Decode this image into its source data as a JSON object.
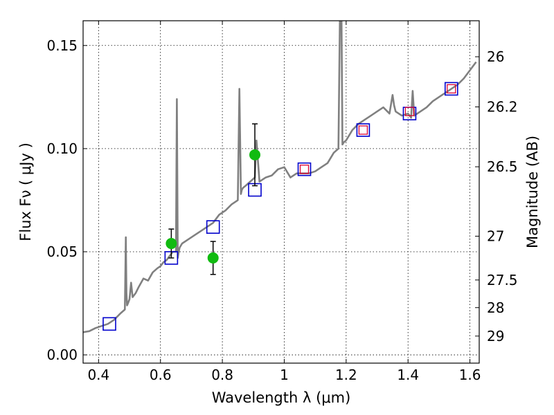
{
  "chart_data": {
    "type": "line",
    "xlabel": "Wavelength  λ (μm)",
    "ylabel": "Flux  Fν  ( μJy )",
    "y2label": "Magnitude (AB)",
    "xlim": [
      0.35,
      1.63
    ],
    "ylim": [
      -0.004,
      0.162
    ],
    "grid": true,
    "x_ticks": [
      0.4,
      0.6,
      0.8,
      1.0,
      1.2,
      1.4,
      1.6
    ],
    "x_tick_labels": [
      "0.4",
      "0.6",
      "0.8",
      "1",
      "1.2",
      "1.4",
      "1.6"
    ],
    "y_ticks": [
      0.0,
      0.05,
      0.1,
      0.15
    ],
    "y_tick_labels": [
      "0.00",
      "0.05",
      "0.10",
      "0.15"
    ],
    "mag_ticks": [
      26,
      26.2,
      26.5,
      27,
      27.5,
      28,
      29
    ],
    "mag_tick_labels": [
      "26",
      "26.2",
      "26.5",
      "27",
      "27.5",
      "28",
      "29"
    ],
    "colors": {
      "spectrum": "#808080",
      "model_box": "#0000cc",
      "filter_box": "#dd0033",
      "observed": "#11bb11",
      "errorbar": "#000000"
    },
    "series": [
      {
        "kind": "spectrum",
        "x": [
          0.35,
          0.37,
          0.39,
          0.41,
          0.43,
          0.45,
          0.47,
          0.485,
          0.488,
          0.49,
          0.492,
          0.495,
          0.5,
          0.505,
          0.51,
          0.52,
          0.53,
          0.545,
          0.56,
          0.575,
          0.59,
          0.6,
          0.61,
          0.62,
          0.63,
          0.64,
          0.65,
          0.653,
          0.656,
          0.659,
          0.662,
          0.67,
          0.69,
          0.71,
          0.73,
          0.75,
          0.77,
          0.79,
          0.81,
          0.83,
          0.85,
          0.855,
          0.86,
          0.863,
          0.867,
          0.875,
          0.89,
          0.905,
          0.91,
          0.92,
          0.93,
          0.94,
          0.96,
          0.98,
          1.0,
          1.02,
          1.04,
          1.06,
          1.08,
          1.1,
          1.12,
          1.14,
          1.16,
          1.175,
          1.18,
          1.185,
          1.188,
          1.192,
          1.2,
          1.22,
          1.24,
          1.26,
          1.28,
          1.3,
          1.32,
          1.34,
          1.35,
          1.355,
          1.36,
          1.37,
          1.38,
          1.4,
          1.41,
          1.415,
          1.42,
          1.44,
          1.46,
          1.48,
          1.5,
          1.52,
          1.54,
          1.56,
          1.58,
          1.6,
          1.62
        ],
        "y": [
          0.011,
          0.0115,
          0.013,
          0.014,
          0.015,
          0.017,
          0.02,
          0.022,
          0.057,
          0.03,
          0.024,
          0.025,
          0.027,
          0.035,
          0.028,
          0.03,
          0.033,
          0.037,
          0.036,
          0.04,
          0.042,
          0.043,
          0.045,
          0.046,
          0.048,
          0.05,
          0.05,
          0.124,
          0.047,
          0.05,
          0.052,
          0.054,
          0.056,
          0.058,
          0.06,
          0.062,
          0.064,
          0.068,
          0.07,
          0.073,
          0.075,
          0.129,
          0.078,
          0.08,
          0.081,
          0.082,
          0.084,
          0.086,
          0.104,
          0.084,
          0.085,
          0.086,
          0.087,
          0.09,
          0.091,
          0.086,
          0.088,
          0.088,
          0.088,
          0.089,
          0.091,
          0.093,
          0.098,
          0.1,
          0.165,
          0.165,
          0.102,
          0.103,
          0.104,
          0.109,
          0.112,
          0.114,
          0.116,
          0.118,
          0.12,
          0.117,
          0.126,
          0.121,
          0.118,
          0.117,
          0.116,
          0.117,
          0.115,
          0.128,
          0.116,
          0.118,
          0.12,
          0.123,
          0.125,
          0.127,
          0.129,
          0.131,
          0.134,
          0.138,
          0.142
        ]
      },
      {
        "kind": "model_photometry",
        "x": [
          0.435,
          0.635,
          0.77,
          0.905,
          1.065,
          1.255,
          1.405,
          1.54
        ],
        "y": [
          0.015,
          0.047,
          0.062,
          0.08,
          0.09,
          0.109,
          0.117,
          0.129
        ]
      },
      {
        "kind": "filter_photometry",
        "x": [
          1.065,
          1.255,
          1.405,
          1.54
        ],
        "y": [
          0.09,
          0.109,
          0.118,
          0.129
        ]
      },
      {
        "kind": "observed",
        "x": [
          0.635,
          0.77,
          0.905
        ],
        "y": [
          0.054,
          0.047,
          0.097
        ],
        "err": [
          0.007,
          0.008,
          0.015
        ]
      }
    ]
  }
}
